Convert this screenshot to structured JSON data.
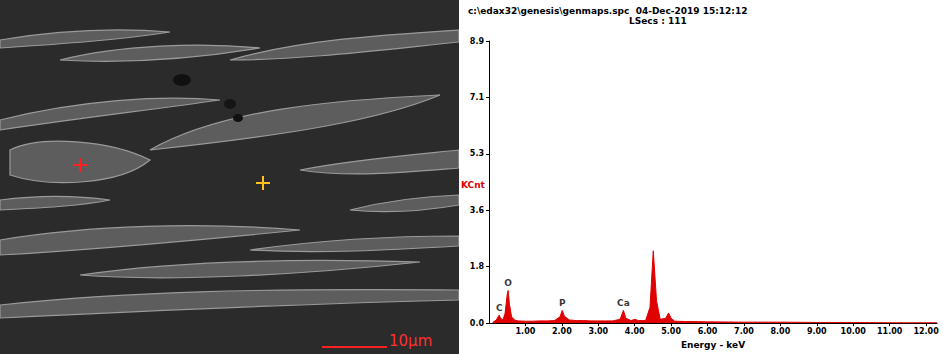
{
  "micrograph": {
    "scale_bar": "10μm"
  },
  "chart_data": {
    "type": "area",
    "title": "c:\\edax32\\genesis\\genmaps.spc  04-Dec-2019 15:12:12",
    "subtitle": "LSecs : 111",
    "xlabel": "Energy - keV",
    "ylabel": "KCnt",
    "color": "#e00000",
    "grid": false,
    "xlim": [
      0,
      12.3
    ],
    "xticks": [
      {
        "value": 1,
        "label": "1.00"
      },
      {
        "value": 2,
        "label": "2.00"
      },
      {
        "value": 3,
        "label": "3.00"
      },
      {
        "value": 4,
        "label": "4.00"
      },
      {
        "value": 5,
        "label": "5.00"
      },
      {
        "value": 6,
        "label": "6.00"
      },
      {
        "value": 7,
        "label": "7.00"
      },
      {
        "value": 8,
        "label": "8.00"
      },
      {
        "value": 9,
        "label": "9.00"
      },
      {
        "value": 10,
        "label": "10.00"
      },
      {
        "value": 11,
        "label": "11.00"
      },
      {
        "value": 12,
        "label": "12.00"
      }
    ],
    "ylim": [
      0,
      8.9
    ],
    "yticks": [
      {
        "value": 0,
        "label": "0.0"
      },
      {
        "value": 1.78,
        "label": "1.8"
      },
      {
        "value": 3.56,
        "label": "3.6"
      },
      {
        "value": 5.34,
        "label": "5.3"
      },
      {
        "value": 7.12,
        "label": "7.1"
      },
      8.9
    ],
    "x": [
      0.1,
      0.2,
      0.26,
      0.28,
      0.32,
      0.38,
      0.44,
      0.5,
      0.525,
      0.56,
      0.62,
      0.7,
      0.8,
      1.0,
      1.2,
      1.4,
      1.6,
      1.8,
      1.95,
      2.01,
      2.07,
      2.2,
      2.4,
      2.6,
      2.8,
      3.0,
      3.2,
      3.4,
      3.6,
      3.69,
      3.76,
      3.9,
      4.01,
      4.1,
      4.3,
      4.42,
      4.51,
      4.6,
      4.7,
      4.85,
      4.93,
      5.0,
      5.1,
      5.4,
      6.0,
      7.0,
      8.0,
      9.0,
      10.0,
      11.0,
      12.0,
      12.3
    ],
    "values": [
      0.02,
      0.1,
      0.22,
      0.25,
      0.15,
      0.1,
      0.3,
      0.9,
      1.03,
      0.6,
      0.2,
      0.1,
      0.07,
      0.06,
      0.06,
      0.07,
      0.07,
      0.08,
      0.2,
      0.4,
      0.22,
      0.1,
      0.08,
      0.08,
      0.07,
      0.07,
      0.07,
      0.07,
      0.12,
      0.4,
      0.15,
      0.08,
      0.12,
      0.08,
      0.08,
      0.5,
      2.28,
      0.7,
      0.12,
      0.15,
      0.32,
      0.15,
      0.06,
      0.05,
      0.04,
      0.03,
      0.03,
      0.02,
      0.02,
      0.01,
      0.01,
      0.01
    ],
    "annotations": [
      {
        "text": "C",
        "x": 0.28,
        "y": 0.25
      },
      {
        "text": "O",
        "x": 0.525,
        "y": 1.03
      },
      {
        "text": "P",
        "x": 2.01,
        "y": 0.4
      },
      {
        "text": "Ca",
        "x": 3.69,
        "y": 0.4
      }
    ]
  }
}
